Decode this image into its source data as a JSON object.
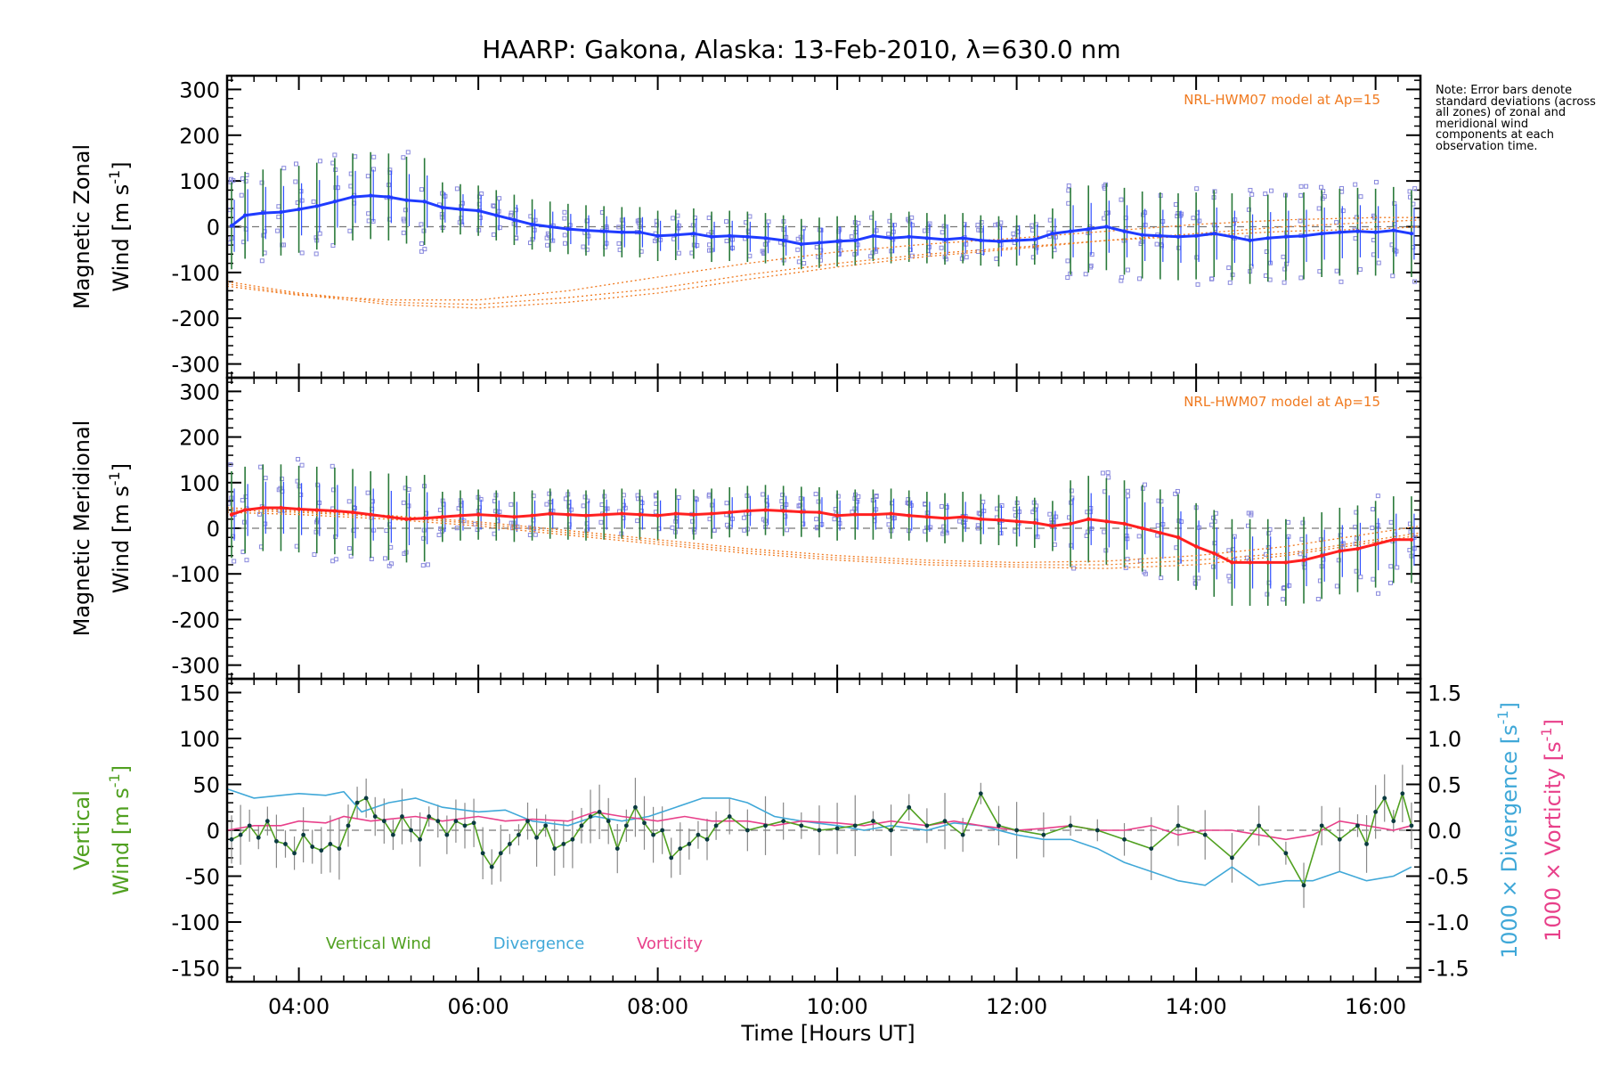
{
  "figure": {
    "title": "HAARP: Gakona,  Alaska: 13-Feb-2010, λ=630.0 nm",
    "note": "Note: Error bars denote standard deviations (across all zones) of zonal and meridional wind components at each observation time.",
    "x_label": "Time [Hours UT]",
    "x_ticks": [
      "04:00",
      "06:00",
      "08:00",
      "10:00",
      "12:00",
      "14:00",
      "16:00"
    ],
    "x_tick_hours": [
      4,
      6,
      8,
      10,
      12,
      14,
      16
    ],
    "x_range": [
      3.2,
      16.5
    ]
  },
  "chart_data": [
    {
      "type": "line",
      "name": "zonal",
      "ylabel_line1": "Magnetic Zonal",
      "ylabel_line2": "Wind [m s",
      "ylabel_sup": "-1",
      "ylabel_close": "]",
      "ylim": [
        -330,
        330
      ],
      "y_ticks": [
        300,
        200,
        100,
        0,
        -100,
        -200,
        -300
      ],
      "model_label": "NRL-HWM07 model at Ap=15",
      "line_color": "#1f3bff",
      "model_color": "#f07a20",
      "x": [
        3.25,
        3.4,
        3.6,
        3.8,
        4.0,
        4.2,
        4.4,
        4.6,
        4.8,
        5.0,
        5.2,
        5.4,
        5.6,
        5.8,
        6.0,
        6.2,
        6.4,
        6.6,
        6.8,
        7.0,
        7.2,
        7.4,
        7.6,
        7.8,
        8.0,
        8.2,
        8.4,
        8.6,
        8.8,
        9.0,
        9.2,
        9.4,
        9.6,
        9.8,
        10.0,
        10.2,
        10.4,
        10.6,
        10.8,
        11.0,
        11.2,
        11.4,
        11.6,
        11.8,
        12.0,
        12.2,
        12.4,
        12.6,
        12.8,
        13.0,
        13.2,
        13.4,
        13.6,
        13.8,
        14.0,
        14.2,
        14.4,
        14.6,
        14.8,
        15.0,
        15.2,
        15.4,
        15.6,
        15.8,
        16.0,
        16.2,
        16.4
      ],
      "y": [
        2,
        25,
        30,
        32,
        38,
        45,
        55,
        65,
        68,
        65,
        58,
        55,
        42,
        38,
        35,
        25,
        15,
        5,
        0,
        -5,
        -8,
        -10,
        -12,
        -12,
        -20,
        -18,
        -15,
        -22,
        -20,
        -22,
        -25,
        -30,
        -38,
        -35,
        -32,
        -30,
        -20,
        -25,
        -22,
        -25,
        -28,
        -25,
        -30,
        -32,
        -30,
        -28,
        -15,
        -10,
        -5,
        0,
        -10,
        -18,
        -20,
        -22,
        -20,
        -15,
        -22,
        -30,
        -25,
        -22,
        -20,
        -15,
        -12,
        -10,
        -12,
        -8,
        -15
      ],
      "model": [
        {
          "x": [
            3.2,
            4.0,
            5.0,
            6.0,
            7.0,
            8.0,
            9.0,
            10.0,
            11.0,
            12.0,
            13.0,
            14.0,
            15.0,
            16.0,
            16.5
          ],
          "y": [
            -120,
            -145,
            -165,
            -170,
            -155,
            -135,
            -105,
            -80,
            -60,
            -45,
            -30,
            -20,
            -10,
            -5,
            0
          ]
        },
        {
          "x": [
            3.2,
            4.0,
            5.0,
            6.0,
            7.0,
            8.0,
            9.0,
            10.0,
            11.0,
            12.0,
            13.0,
            14.0,
            15.0,
            16.0,
            16.5
          ],
          "y": [
            -125,
            -148,
            -170,
            -178,
            -165,
            -145,
            -115,
            -88,
            -65,
            -48,
            -30,
            -15,
            0,
            10,
            15
          ]
        },
        {
          "x": [
            3.2,
            4.0,
            5.0,
            6.0,
            7.0,
            8.0,
            9.0,
            10.0,
            11.0,
            12.0,
            13.0,
            14.0,
            15.0,
            16.0,
            16.5
          ],
          "y": [
            -130,
            -150,
            -160,
            -160,
            -140,
            -110,
            -80,
            -55,
            -38,
            -25,
            -10,
            5,
            15,
            20,
            20
          ]
        }
      ]
    },
    {
      "type": "line",
      "name": "meridional",
      "ylabel_line1": "Magnetic Meridional",
      "ylabel_line2": "Wind [m s",
      "ylabel_sup": "-1",
      "ylabel_close": "]",
      "ylim": [
        -330,
        330
      ],
      "y_ticks": [
        300,
        200,
        100,
        0,
        -100,
        -200,
        -300
      ],
      "model_label": "NRL-HWM07 model at Ap=15",
      "line_color": "#ff2020",
      "model_color": "#f07a20",
      "x": [
        3.25,
        3.4,
        3.6,
        3.8,
        4.0,
        4.2,
        4.4,
        4.6,
        4.8,
        5.0,
        5.2,
        5.4,
        5.6,
        5.8,
        6.0,
        6.2,
        6.4,
        6.6,
        6.8,
        7.0,
        7.2,
        7.4,
        7.6,
        7.8,
        8.0,
        8.2,
        8.4,
        8.6,
        8.8,
        9.0,
        9.2,
        9.4,
        9.6,
        9.8,
        10.0,
        10.2,
        10.4,
        10.6,
        10.8,
        11.0,
        11.2,
        11.4,
        11.6,
        11.8,
        12.0,
        12.2,
        12.4,
        12.6,
        12.8,
        13.0,
        13.2,
        13.4,
        13.6,
        13.8,
        14.0,
        14.2,
        14.4,
        14.6,
        14.8,
        15.0,
        15.2,
        15.4,
        15.6,
        15.8,
        16.0,
        16.2,
        16.4
      ],
      "y": [
        30,
        40,
        45,
        45,
        42,
        40,
        38,
        35,
        30,
        25,
        20,
        22,
        25,
        28,
        30,
        28,
        25,
        28,
        32,
        30,
        28,
        30,
        32,
        30,
        28,
        32,
        30,
        32,
        35,
        38,
        40,
        38,
        36,
        35,
        28,
        30,
        30,
        32,
        28,
        25,
        22,
        25,
        20,
        18,
        15,
        12,
        5,
        10,
        20,
        15,
        10,
        0,
        -10,
        -20,
        -40,
        -55,
        -75,
        -75,
        -75,
        -75,
        -70,
        -60,
        -50,
        -45,
        -35,
        -25,
        -25
      ],
      "model": [
        {
          "x": [
            3.2,
            4.0,
            5.0,
            6.0,
            7.0,
            8.0,
            9.0,
            10.0,
            11.0,
            12.0,
            13.0,
            14.0,
            15.0,
            16.0,
            16.5
          ],
          "y": [
            40,
            35,
            25,
            10,
            -10,
            -30,
            -50,
            -65,
            -75,
            -80,
            -80,
            -70,
            -55,
            -25,
            -10
          ]
        },
        {
          "x": [
            3.2,
            4.0,
            5.0,
            6.0,
            7.0,
            8.0,
            9.0,
            10.0,
            11.0,
            12.0,
            13.0,
            14.0,
            15.0,
            16.0,
            16.5
          ],
          "y": [
            45,
            38,
            28,
            14,
            -5,
            -25,
            -45,
            -60,
            -70,
            -75,
            -72,
            -60,
            -40,
            -10,
            5
          ]
        },
        {
          "x": [
            3.2,
            4.0,
            5.0,
            6.0,
            7.0,
            8.0,
            9.0,
            10.0,
            11.0,
            12.0,
            13.0,
            14.0,
            15.0,
            16.0,
            16.5
          ],
          "y": [
            35,
            30,
            20,
            5,
            -15,
            -35,
            -55,
            -70,
            -80,
            -85,
            -88,
            -80,
            -60,
            -30,
            -15
          ]
        }
      ]
    },
    {
      "type": "line",
      "name": "vertical",
      "ylabel_line1": "Vertical",
      "ylabel_line2": "Wind [m s",
      "ylabel_sup": "-1",
      "ylabel_close": "]",
      "ylim": [
        -165,
        165
      ],
      "y_ticks": [
        150,
        100,
        50,
        0,
        -50,
        -100,
        -150
      ],
      "y2lim": [
        -1.65,
        1.65
      ],
      "y2_ticks": [
        "1.5",
        "1.0",
        "0.5",
        "0.0",
        "-0.5",
        "-1.0",
        "-1.5"
      ],
      "y2_tick_values": [
        1.5,
        1.0,
        0.5,
        0.0,
        -0.5,
        -1.0,
        -1.5
      ],
      "y2label_div": "1000 × Divergence [s",
      "y2label_vor": "1000 × Vorticity [s",
      "y2label_sup": "-1",
      "y2label_close": "]",
      "series": [
        {
          "name": "Vertical Wind",
          "color": "#50a020",
          "x": [
            3.25,
            3.35,
            3.45,
            3.55,
            3.65,
            3.75,
            3.85,
            3.95,
            4.05,
            4.15,
            4.25,
            4.35,
            4.45,
            4.55,
            4.65,
            4.75,
            4.85,
            4.95,
            5.05,
            5.15,
            5.25,
            5.35,
            5.45,
            5.55,
            5.65,
            5.75,
            5.85,
            5.95,
            6.05,
            6.15,
            6.25,
            6.35,
            6.45,
            6.55,
            6.65,
            6.75,
            6.85,
            6.95,
            7.05,
            7.15,
            7.25,
            7.35,
            7.45,
            7.55,
            7.65,
            7.75,
            7.85,
            7.95,
            8.05,
            8.15,
            8.25,
            8.35,
            8.45,
            8.55,
            8.65,
            8.8,
            9.0,
            9.2,
            9.4,
            9.6,
            9.8,
            10.0,
            10.2,
            10.4,
            10.6,
            10.8,
            11.0,
            11.2,
            11.4,
            11.6,
            11.8,
            12.0,
            12.3,
            12.6,
            12.9,
            13.2,
            13.5,
            13.8,
            14.1,
            14.4,
            14.7,
            15.0,
            15.2,
            15.4,
            15.6,
            15.8,
            15.9,
            16.0,
            16.1,
            16.2,
            16.3,
            16.4
          ],
          "y": [
            -10,
            -5,
            5,
            -8,
            10,
            -12,
            -15,
            -25,
            -5,
            -18,
            -22,
            -15,
            -20,
            5,
            30,
            35,
            15,
            10,
            -5,
            15,
            0,
            -10,
            15,
            10,
            -5,
            10,
            5,
            8,
            -25,
            -40,
            -25,
            -15,
            -5,
            10,
            -8,
            5,
            -20,
            -15,
            -10,
            5,
            15,
            20,
            10,
            -20,
            5,
            25,
            8,
            -5,
            0,
            -30,
            -20,
            -15,
            -5,
            -10,
            5,
            15,
            0,
            5,
            10,
            5,
            0,
            2,
            5,
            10,
            0,
            25,
            5,
            10,
            -5,
            40,
            5,
            0,
            -5,
            5,
            0,
            -10,
            -20,
            5,
            -5,
            -30,
            5,
            -25,
            -60,
            5,
            -10,
            5,
            -15,
            20,
            35,
            10,
            40,
            5
          ]
        },
        {
          "name": "Divergence",
          "color": "#40a8d8",
          "x": [
            3.2,
            3.5,
            3.8,
            4.0,
            4.3,
            4.5,
            4.7,
            5.0,
            5.3,
            5.6,
            6.0,
            6.3,
            6.6,
            7.0,
            7.3,
            7.6,
            7.9,
            8.2,
            8.5,
            8.8,
            9.0,
            9.3,
            9.6,
            10.0,
            10.3,
            10.6,
            11.0,
            11.3,
            11.6,
            12.0,
            12.3,
            12.6,
            12.9,
            13.2,
            13.5,
            13.8,
            14.1,
            14.4,
            14.7,
            15.0,
            15.3,
            15.6,
            15.9,
            16.2,
            16.4
          ],
          "y": [
            0.45,
            0.35,
            0.38,
            0.4,
            0.38,
            0.42,
            0.2,
            0.3,
            0.35,
            0.25,
            0.2,
            0.22,
            0.1,
            0.05,
            0.15,
            0.1,
            0.15,
            0.25,
            0.35,
            0.35,
            0.3,
            0.15,
            0.1,
            0.05,
            0.0,
            0.05,
            0.0,
            0.08,
            0.05,
            -0.05,
            -0.1,
            -0.1,
            -0.2,
            -0.35,
            -0.45,
            -0.55,
            -0.6,
            -0.4,
            -0.6,
            -0.55,
            -0.55,
            -0.45,
            -0.55,
            -0.5,
            -0.4
          ]
        },
        {
          "name": "Vorticity",
          "color": "#e8408a",
          "x": [
            3.2,
            3.5,
            3.8,
            4.0,
            4.3,
            4.5,
            4.8,
            5.0,
            5.3,
            5.6,
            6.0,
            6.3,
            6.6,
            7.0,
            7.3,
            7.6,
            8.0,
            8.3,
            8.6,
            9.0,
            9.3,
            9.6,
            10.0,
            10.3,
            10.6,
            11.0,
            11.3,
            11.6,
            12.0,
            12.3,
            12.6,
            12.9,
            13.2,
            13.5,
            13.8,
            14.1,
            14.4,
            14.7,
            15.0,
            15.3,
            15.6,
            15.9,
            16.2,
            16.4
          ],
          "y": [
            0.0,
            0.05,
            0.05,
            0.1,
            0.08,
            0.15,
            0.1,
            0.12,
            0.15,
            0.1,
            0.15,
            0.1,
            0.12,
            0.1,
            0.2,
            0.15,
            0.1,
            0.15,
            0.1,
            0.1,
            0.05,
            0.1,
            0.08,
            0.05,
            0.1,
            0.05,
            0.1,
            0.05,
            0.0,
            0.02,
            0.05,
            0.0,
            0.0,
            0.05,
            -0.05,
            0.0,
            0.0,
            -0.05,
            -0.1,
            -0.05,
            0.1,
            0.05,
            0.0,
            0.05
          ]
        }
      ],
      "legend": [
        "Vertical Wind",
        "Divergence",
        "Vorticity"
      ],
      "legend_placement": "bottom-left"
    }
  ]
}
